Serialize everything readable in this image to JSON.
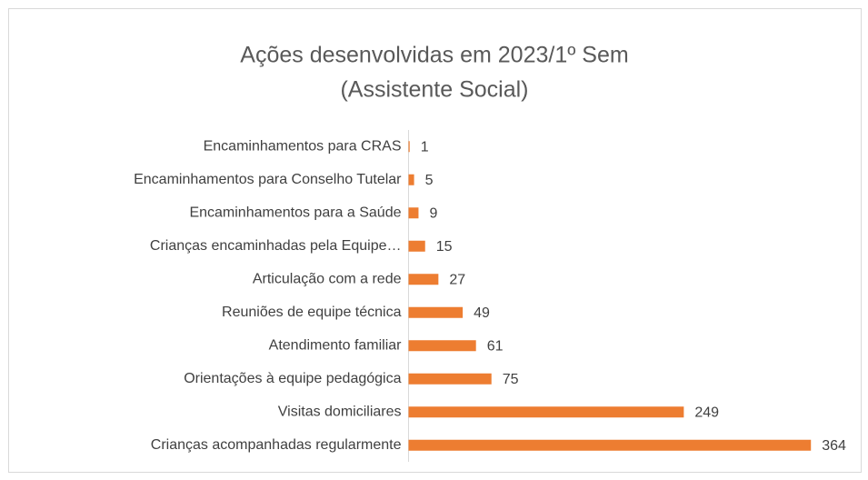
{
  "chart_data": {
    "type": "bar",
    "orientation": "horizontal",
    "title": "Ações desenvolvidas em 2023/1º Sem",
    "subtitle": "(Assistente Social)",
    "categories": [
      "Encaminhamentos para CRAS",
      "Encaminhamentos para Conselho Tutelar",
      "Encaminhamentos para a Saúde",
      "Crianças encaminhadas pela Equipe…",
      "Articulação com a rede",
      "Reuniões de equipe técnica",
      "Atendimento familiar",
      "Orientações à equipe pedagógica",
      "Visitas domiciliares",
      "Crianças acompanhadas regularmente"
    ],
    "values": [
      1,
      5,
      9,
      15,
      27,
      49,
      61,
      75,
      249,
      364
    ],
    "color": "#ed7d31",
    "xlim": [
      0,
      400
    ]
  }
}
